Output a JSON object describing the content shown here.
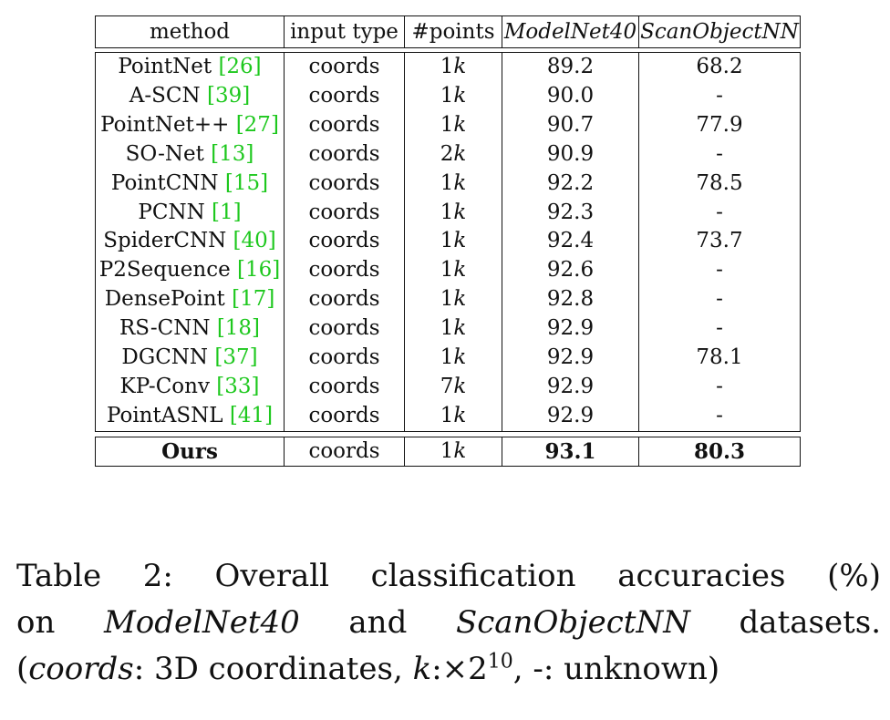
{
  "table": {
    "headers": {
      "method": "method",
      "input_type": "input type",
      "points": "#points",
      "modelnet40": "ModelNet40",
      "scanobjectnn": "ScanObjectNN"
    },
    "rows": [
      {
        "name": "PointNet",
        "ref": "[26]",
        "input": "coords",
        "points_num": "1",
        "points_unit": "k",
        "mn40": "89.2",
        "son": "68.2"
      },
      {
        "name": "A-SCN",
        "ref": "[39]",
        "input": "coords",
        "points_num": "1",
        "points_unit": "k",
        "mn40": "90.0",
        "son": "-"
      },
      {
        "name": "PointNet++",
        "ref": "[27]",
        "input": "coords",
        "points_num": "1",
        "points_unit": "k",
        "mn40": "90.7",
        "son": "77.9"
      },
      {
        "name": "SO-Net",
        "ref": "[13]",
        "input": "coords",
        "points_num": "2",
        "points_unit": "k",
        "mn40": "90.9",
        "son": "-"
      },
      {
        "name": "PointCNN",
        "ref": "[15]",
        "input": "coords",
        "points_num": "1",
        "points_unit": "k",
        "mn40": "92.2",
        "son": "78.5"
      },
      {
        "name": "PCNN",
        "ref": "[1]",
        "input": "coords",
        "points_num": "1",
        "points_unit": "k",
        "mn40": "92.3",
        "son": "-"
      },
      {
        "name": "SpiderCNN",
        "ref": "[40]",
        "input": "coords",
        "points_num": "1",
        "points_unit": "k",
        "mn40": "92.4",
        "son": "73.7"
      },
      {
        "name": "P2Sequence",
        "ref": "[16]",
        "input": "coords",
        "points_num": "1",
        "points_unit": "k",
        "mn40": "92.6",
        "son": "-"
      },
      {
        "name": "DensePoint",
        "ref": "[17]",
        "input": "coords",
        "points_num": "1",
        "points_unit": "k",
        "mn40": "92.8",
        "son": "-"
      },
      {
        "name": "RS-CNN",
        "ref": "[18]",
        "input": "coords",
        "points_num": "1",
        "points_unit": "k",
        "mn40": "92.9",
        "son": "-"
      },
      {
        "name": "DGCNN",
        "ref": "[37]",
        "input": "coords",
        "points_num": "1",
        "points_unit": "k",
        "mn40": "92.9",
        "son": "78.1"
      },
      {
        "name": "KP-Conv",
        "ref": "[33]",
        "input": "coords",
        "points_num": "7",
        "points_unit": "k",
        "mn40": "92.9",
        "son": "-"
      },
      {
        "name": "PointASNL",
        "ref": "[41]",
        "input": "coords",
        "points_num": "1",
        "points_unit": "k",
        "mn40": "92.9",
        "son": "-"
      }
    ],
    "ours": {
      "name": "Ours",
      "input": "coords",
      "points_num": "1",
      "points_unit": "k",
      "mn40": "93.1",
      "son": "80.3"
    }
  },
  "caption": {
    "line1": "Table 2: Overall classification accuracies (%)",
    "line2_a": "on",
    "line2_b": "ModelNet40",
    "line2_c": "and",
    "line2_d": "ScanObjectNN",
    "line2_e": "datasets.",
    "line3_a": "(",
    "line3_b": "coords",
    "line3_c": ": 3D coordinates,",
    "line3_d": "k",
    "line3_e": ":×2",
    "line3_sup": "10",
    "line3_f": ", -: unknown)"
  },
  "colors": {
    "reference_link": "#1ec81e",
    "text": "#111111"
  }
}
